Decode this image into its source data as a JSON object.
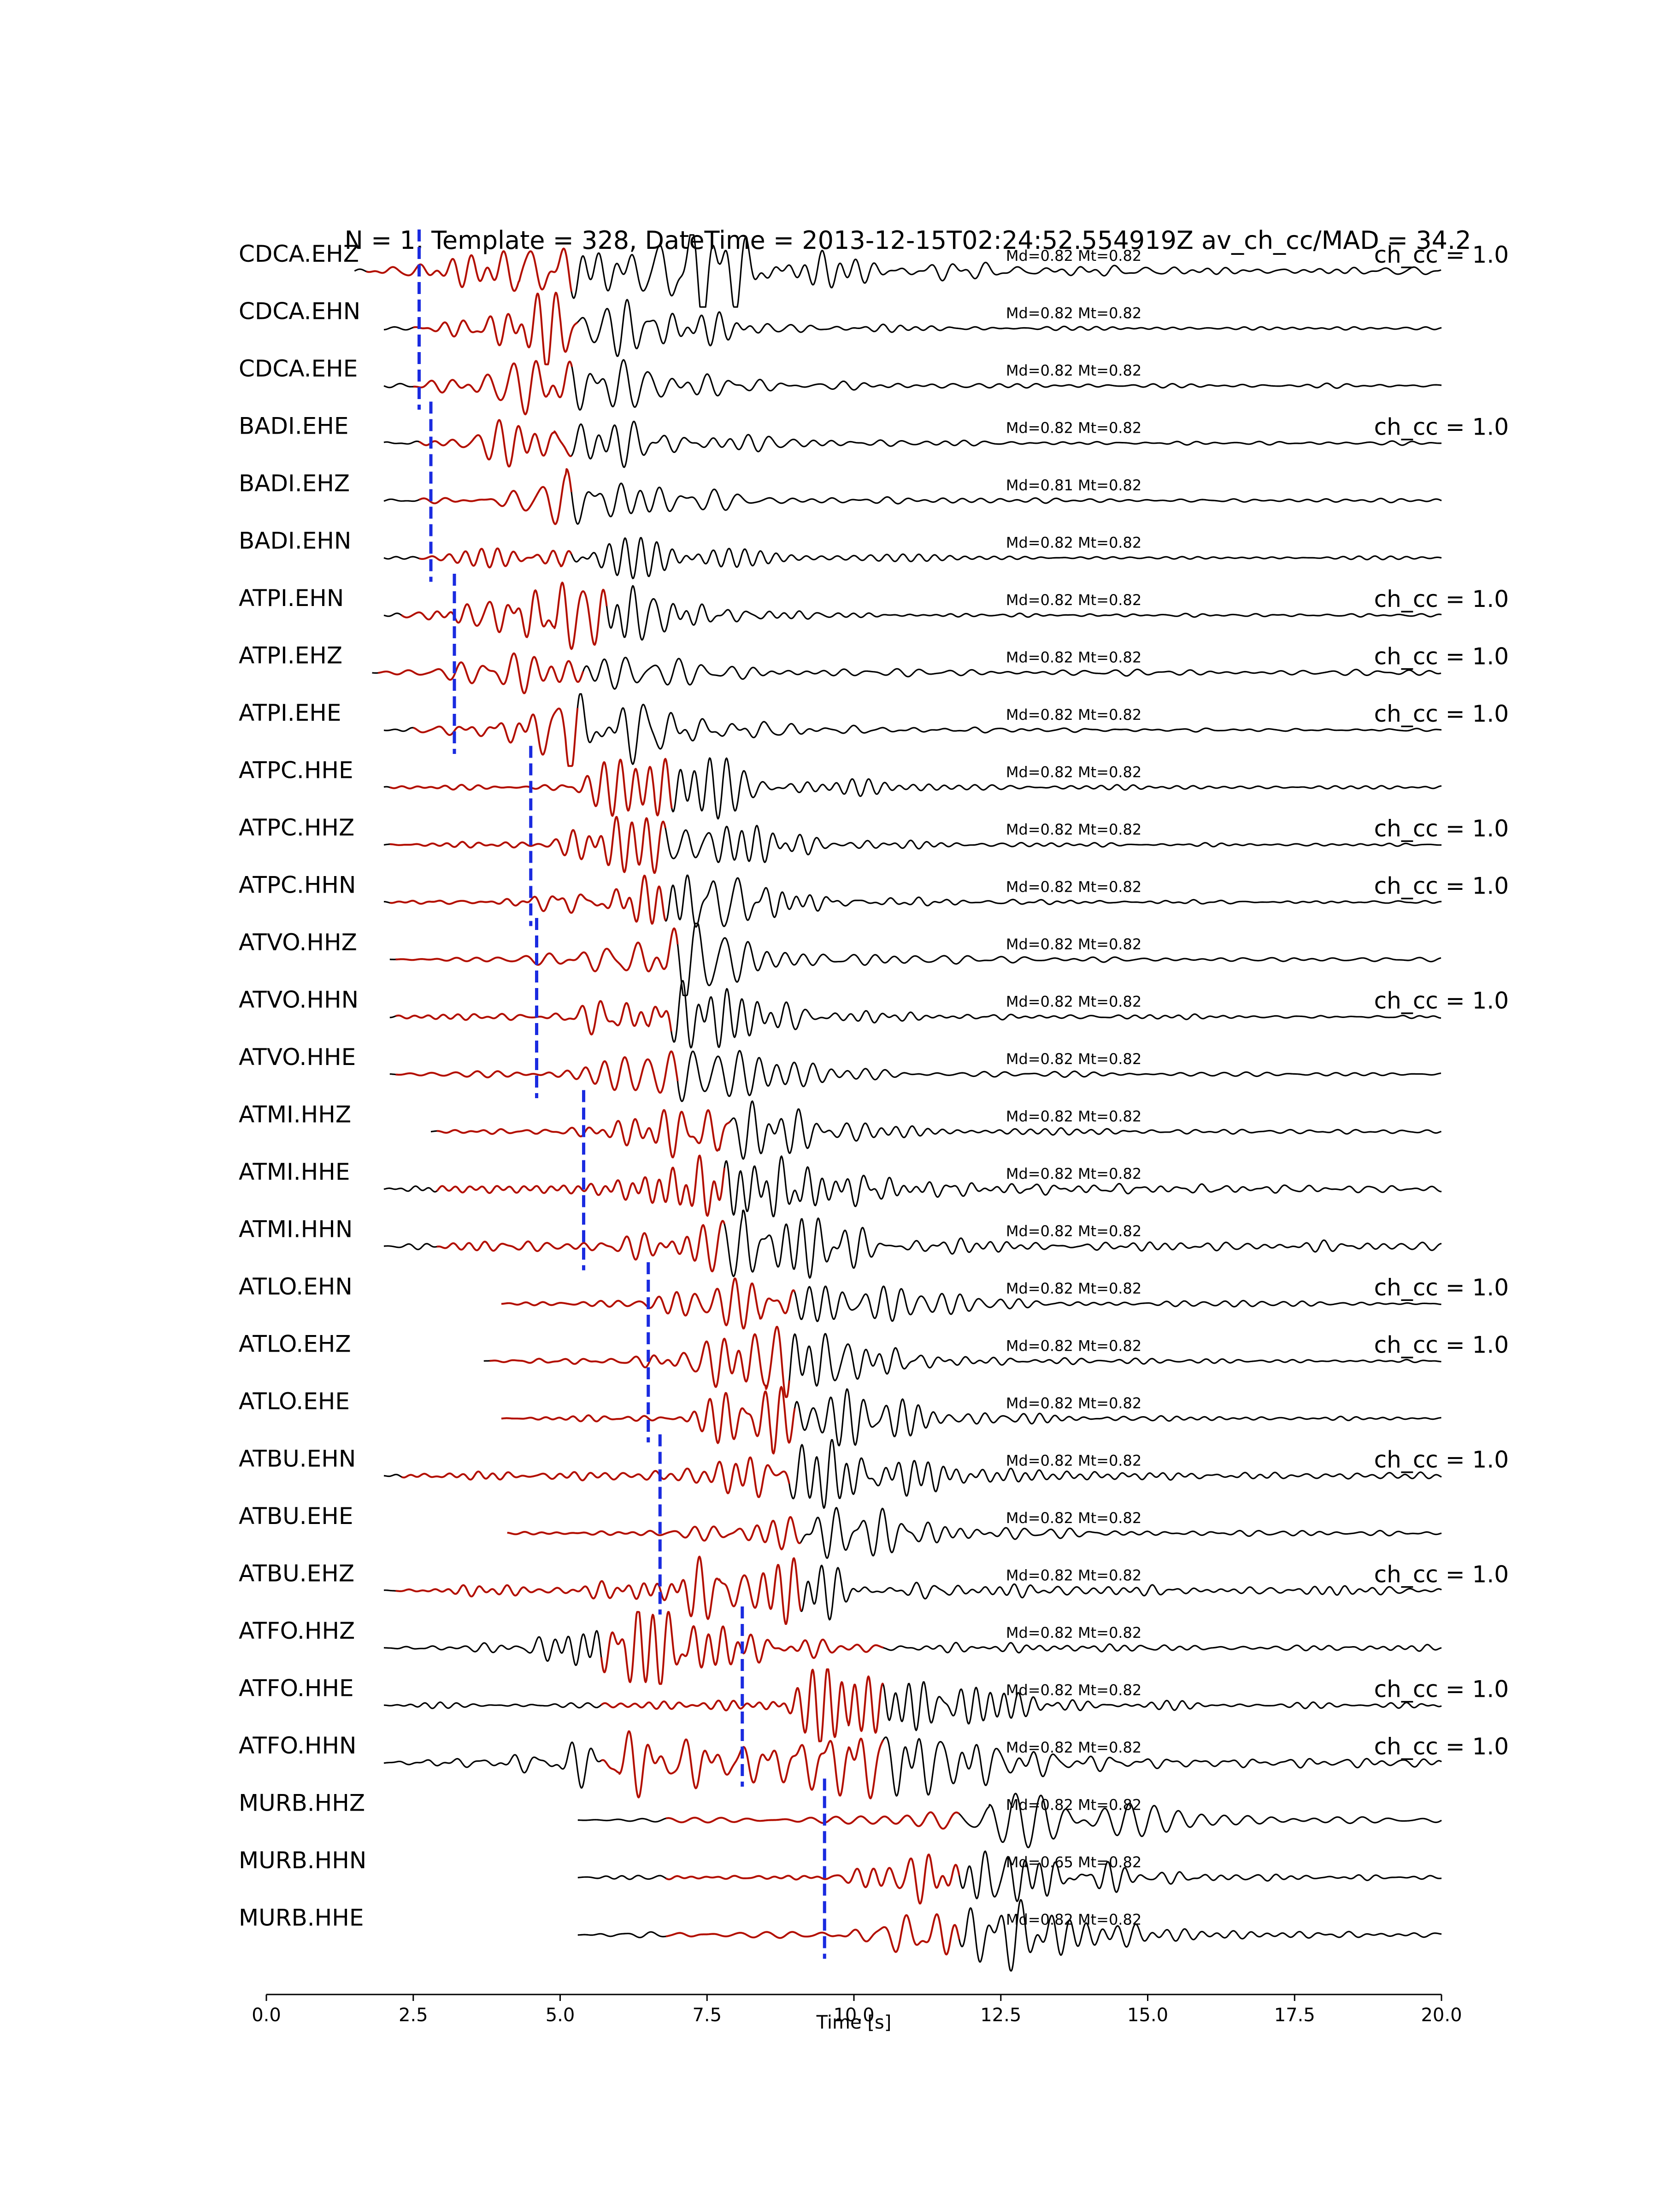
{
  "chart_data": {
    "type": "line",
    "title": "N = 1, Template = 328, DateTime = 2013-12-15T02:24:52.554919Z av_ch_cc/MAD = 34.2",
    "xlabel": "Time [s]",
    "ylabel": "",
    "xlim": [
      0,
      20
    ],
    "xticks": [
      "0.0",
      "2.5",
      "5.0",
      "7.5",
      "10.0",
      "12.5",
      "15.0",
      "17.5",
      "20.0"
    ],
    "grid": false,
    "legend": "none",
    "colors": {
      "trace": "#000000",
      "template": "#cc1100",
      "pick": "#1a2be0",
      "text": "#000000"
    },
    "traces": [
      {
        "name": "CDCA.EHZ",
        "md_mt": "Md=0.82 Mt=0.82",
        "ch_cc": "ch_cc = 1.0",
        "pick": 2.6,
        "start": 1.5,
        "tmpl": [
          1.7,
          5.2
        ],
        "peaks": [
          [
            4.3,
            0.8
          ],
          [
            7.7,
            1.0
          ]
        ],
        "noise": 0.12,
        "freq": 2.6
      },
      {
        "name": "CDCA.EHN",
        "md_mt": "Md=0.82 Mt=0.82",
        "ch_cc": "",
        "pick": 2.6,
        "start": 2.0,
        "tmpl": [
          2.5,
          5.3
        ],
        "peaks": [
          [
            5.0,
            1.0
          ]
        ],
        "noise": 0.06,
        "freq": 2.8
      },
      {
        "name": "CDCA.EHE",
        "md_mt": "Md=0.82 Mt=0.82",
        "ch_cc": "",
        "pick": 2.6,
        "start": 2.0,
        "tmpl": [
          2.5,
          5.2
        ],
        "peaks": [
          [
            4.8,
            0.8
          ]
        ],
        "noise": 0.08,
        "freq": 2.8
      },
      {
        "name": "BADI.EHE",
        "md_mt": "Md=0.82 Mt=0.82",
        "ch_cc": "ch_cc = 1.0",
        "pick": 2.8,
        "start": 2.0,
        "tmpl": [
          2.6,
          5.2
        ],
        "peaks": [
          [
            4.9,
            1.0
          ]
        ],
        "noise": 0.05,
        "freq": 3.0
      },
      {
        "name": "BADI.EHZ",
        "md_mt": "Md=0.81 Mt=0.82",
        "ch_cc": "",
        "pick": 2.8,
        "start": 2.0,
        "tmpl": [
          2.6,
          5.2
        ],
        "peaks": [
          [
            5.1,
            1.0
          ]
        ],
        "noise": 0.05,
        "freq": 3.0
      },
      {
        "name": "BADI.EHN",
        "md_mt": "Md=0.82 Mt=0.82",
        "ch_cc": "",
        "pick": 2.8,
        "start": 2.0,
        "tmpl": [
          2.6,
          5.2
        ],
        "peaks": [
          [
            5.0,
            1.0
          ]
        ],
        "noise": 0.05,
        "freq": 3.0
      },
      {
        "name": "ATPI.EHN",
        "md_mt": "Md=0.82 Mt=0.82",
        "ch_cc": "ch_cc = 1.0",
        "pick": 3.2,
        "start": 2.0,
        "tmpl": [
          2.3,
          5.8
        ],
        "peaks": [
          [
            4.9,
            1.0
          ]
        ],
        "noise": 0.04,
        "freq": 3.0
      },
      {
        "name": "ATPI.EHZ",
        "md_mt": "Md=0.82 Mt=0.82",
        "ch_cc": "ch_cc = 1.0",
        "pick": 3.2,
        "start": 1.8,
        "tmpl": [
          1.9,
          5.4
        ],
        "peaks": [
          [
            4.8,
            0.9
          ]
        ],
        "noise": 0.12,
        "freq": 2.8
      },
      {
        "name": "ATPI.EHE",
        "md_mt": "Md=0.82 Mt=0.82",
        "ch_cc": "ch_cc = 1.0",
        "pick": 3.2,
        "start": 2.0,
        "tmpl": [
          2.5,
          5.3
        ],
        "peaks": [
          [
            5.1,
            1.0
          ]
        ],
        "noise": 0.04,
        "freq": 3.0
      },
      {
        "name": "ATPC.HHE",
        "md_mt": "Md=0.82 Mt=0.82",
        "ch_cc": "",
        "pick": 4.5,
        "start": 2.0,
        "tmpl": [
          2.1,
          6.9
        ],
        "peaks": [
          [
            6.6,
            1.0
          ]
        ],
        "noise": 0.04,
        "freq": 3.0
      },
      {
        "name": "ATPC.HHZ",
        "md_mt": "Md=0.82 Mt=0.82",
        "ch_cc": "ch_cc = 1.0",
        "pick": 4.5,
        "start": 2.0,
        "tmpl": [
          2.1,
          6.8
        ],
        "peaks": [
          [
            6.4,
            1.0
          ]
        ],
        "noise": 0.04,
        "freq": 3.0
      },
      {
        "name": "ATPC.HHN",
        "md_mt": "Md=0.82 Mt=0.82",
        "ch_cc": "ch_cc = 1.0",
        "pick": 4.5,
        "start": 2.0,
        "tmpl": [
          2.1,
          6.8
        ],
        "peaks": [
          [
            6.5,
            1.0
          ]
        ],
        "noise": 0.04,
        "freq": 3.0
      },
      {
        "name": "ATVO.HHZ",
        "md_mt": "Md=0.82 Mt=0.82",
        "ch_cc": "",
        "pick": 4.6,
        "start": 2.1,
        "tmpl": [
          2.2,
          7.0
        ],
        "peaks": [
          [
            6.8,
            1.0
          ]
        ],
        "noise": 0.06,
        "freq": 3.0
      },
      {
        "name": "ATVO.HHN",
        "md_mt": "Md=0.82 Mt=0.82",
        "ch_cc": "ch_cc = 1.0",
        "pick": 4.6,
        "start": 2.1,
        "tmpl": [
          2.2,
          6.9
        ],
        "peaks": [
          [
            6.5,
            1.0
          ]
        ],
        "noise": 0.05,
        "freq": 3.0
      },
      {
        "name": "ATVO.HHE",
        "md_mt": "Md=0.82 Mt=0.82",
        "ch_cc": "",
        "pick": 4.6,
        "start": 2.1,
        "tmpl": [
          2.2,
          7.0
        ],
        "peaks": [
          [
            7.0,
            1.0
          ]
        ],
        "noise": 0.05,
        "freq": 3.0
      },
      {
        "name": "ATMI.HHZ",
        "md_mt": "Md=0.82 Mt=0.82",
        "ch_cc": "",
        "pick": 5.4,
        "start": 2.8,
        "tmpl": [
          2.9,
          7.9
        ],
        "peaks": [
          [
            7.7,
            1.0
          ]
        ],
        "noise": 0.06,
        "freq": 3.0
      },
      {
        "name": "ATMI.HHE",
        "md_mt": "Md=0.82 Mt=0.82",
        "ch_cc": "",
        "pick": 5.4,
        "start": 2.0,
        "tmpl": [
          2.9,
          7.8
        ],
        "peaks": [
          [
            7.6,
            1.0
          ]
        ],
        "noise": 0.12,
        "freq": 3.0
      },
      {
        "name": "ATMI.HHN",
        "md_mt": "Md=0.82 Mt=0.82",
        "ch_cc": "",
        "pick": 5.4,
        "start": 2.0,
        "tmpl": [
          2.9,
          7.8
        ],
        "peaks": [
          [
            8.1,
            1.0
          ]
        ],
        "noise": 0.14,
        "freq": 3.0
      },
      {
        "name": "ATLO.EHN",
        "md_mt": "Md=0.82 Mt=0.82",
        "ch_cc": "ch_cc = 1.0",
        "pick": 6.5,
        "start": 4.0,
        "tmpl": [
          4.0,
          9.0
        ],
        "peaks": [
          [
            8.4,
            1.0
          ]
        ],
        "noise": 0.05,
        "freq": 3.0
      },
      {
        "name": "ATLO.EHZ",
        "md_mt": "Md=0.82 Mt=0.82",
        "ch_cc": "ch_cc = 1.0",
        "pick": 6.5,
        "start": 3.7,
        "tmpl": [
          3.8,
          8.9
        ],
        "peaks": [
          [
            8.5,
            1.0
          ]
        ],
        "noise": 0.06,
        "freq": 3.0
      },
      {
        "name": "ATLO.EHE",
        "md_mt": "Md=0.82 Mt=0.82",
        "ch_cc": "",
        "pick": 6.5,
        "start": 4.0,
        "tmpl": [
          4.0,
          9.0
        ],
        "peaks": [
          [
            8.6,
            1.0
          ]
        ],
        "noise": 0.06,
        "freq": 3.0
      },
      {
        "name": "ATBU.EHN",
        "md_mt": "Md=0.82 Mt=0.82",
        "ch_cc": "ch_cc = 1.0",
        "pick": 6.7,
        "start": 2.0,
        "tmpl": [
          2.3,
          8.9
        ],
        "peaks": [
          [
            8.9,
            0.9
          ]
        ],
        "noise": 0.12,
        "freq": 3.0
      },
      {
        "name": "ATBU.EHE",
        "md_mt": "Md=0.82 Mt=0.82",
        "ch_cc": "",
        "pick": 6.7,
        "start": 4.1,
        "tmpl": [
          4.1,
          9.1
        ],
        "peaks": [
          [
            9.3,
            1.0
          ]
        ],
        "noise": 0.08,
        "freq": 3.0
      },
      {
        "name": "ATBU.EHZ",
        "md_mt": "Md=0.82 Mt=0.82",
        "ch_cc": "ch_cc = 1.0",
        "pick": 6.7,
        "start": 2.0,
        "tmpl": [
          2.2,
          9.1
        ],
        "peaks": [
          [
            7.7,
            1.0
          ]
        ],
        "noise": 0.14,
        "freq": 3.0
      },
      {
        "name": "ATFO.HHZ",
        "md_mt": "Md=0.82 Mt=0.82",
        "ch_cc": "",
        "pick": 8.1,
        "start": 2.0,
        "tmpl": [
          5.7,
          10.5
        ],
        "peaks": [
          [
            6.1,
            1.0
          ]
        ],
        "noise": 0.1,
        "freq": 3.0
      },
      {
        "name": "ATFO.HHE",
        "md_mt": "Md=0.82 Mt=0.82",
        "ch_cc": "ch_cc = 1.0",
        "pick": 8.1,
        "start": 2.0,
        "tmpl": [
          5.7,
          10.5
        ],
        "peaks": [
          [
            9.9,
            1.0
          ]
        ],
        "noise": 0.1,
        "freq": 3.0
      },
      {
        "name": "ATFO.HHN",
        "md_mt": "Md=0.82 Mt=0.82",
        "ch_cc": "ch_cc = 1.0",
        "pick": 8.1,
        "start": 2.0,
        "tmpl": [
          5.7,
          10.5
        ],
        "peaks": [
          [
            9.9,
            1.0
          ],
          [
            6.0,
            0.6
          ]
        ],
        "noise": 0.12,
        "freq": 3.0
      },
      {
        "name": "MURB.HHZ",
        "md_mt": "Md=0.82 Mt=0.82",
        "ch_cc": "",
        "pick": 9.5,
        "start": 5.3,
        "tmpl": [
          6.8,
          11.8
        ],
        "peaks": [
          [
            12.3,
            1.0
          ]
        ],
        "noise": 0.08,
        "freq": 3.0
      },
      {
        "name": "MURB.HHN",
        "md_mt": "Md=0.65 Mt=0.82",
        "ch_cc": "",
        "pick": 9.5,
        "start": 5.3,
        "tmpl": [
          6.8,
          11.8
        ],
        "peaks": [
          [
            11.8,
            1.0
          ]
        ],
        "noise": 0.05,
        "freq": 3.0
      },
      {
        "name": "MURB.HHE",
        "md_mt": "Md=0.82 Mt=0.82",
        "ch_cc": "",
        "pick": 9.5,
        "start": 5.3,
        "tmpl": [
          6.8,
          11.8
        ],
        "peaks": [
          [
            11.9,
            1.0
          ]
        ],
        "noise": 0.08,
        "freq": 3.0
      }
    ]
  }
}
